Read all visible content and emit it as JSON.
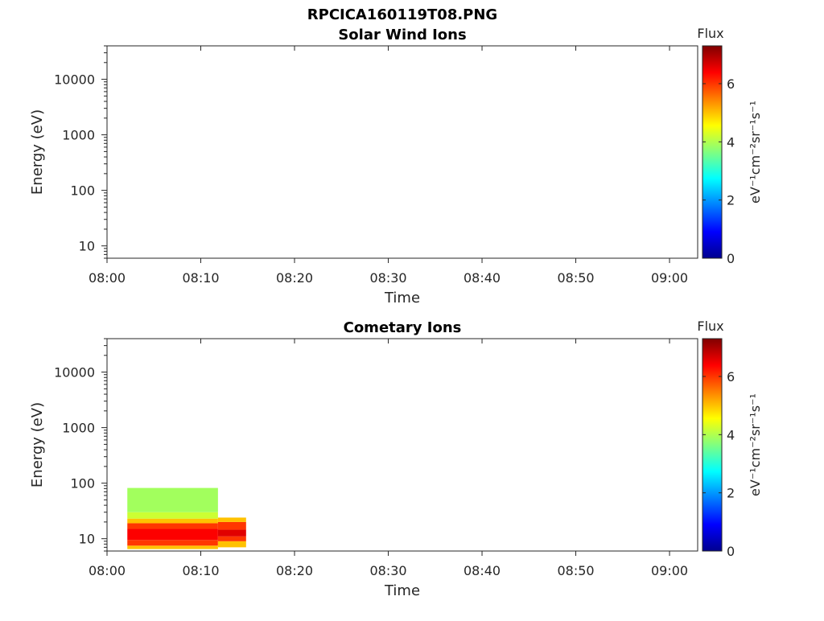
{
  "figure": {
    "filename": "RPCICA160119T08.PNG"
  },
  "chart_data": [
    {
      "type": "heatmap",
      "title": "Solar Wind Ions",
      "xlabel": "Time",
      "ylabel": "Energy (eV)",
      "x_ticks": [
        "08:00",
        "08:10",
        "08:20",
        "08:30",
        "08:40",
        "08:50",
        "09:00"
      ],
      "x_range": [
        "08:00",
        "09:03"
      ],
      "y_scale": "log",
      "y_range": [
        6,
        40000
      ],
      "y_ticks": [
        {
          "value": 10,
          "label": "10"
        },
        {
          "value": 100,
          "label": "100"
        },
        {
          "value": 1000,
          "label": "1000"
        },
        {
          "value": 10000,
          "label": "10000"
        }
      ],
      "colorbar": {
        "title": "Flux",
        "label": "eV⁻¹cm⁻²sr⁻¹s⁻¹",
        "range": [
          0,
          7.3
        ],
        "ticks": [
          "0",
          "2",
          "4",
          "6"
        ],
        "colormap": "jet"
      },
      "cells": []
    },
    {
      "type": "heatmap",
      "title": "Cometary Ions",
      "xlabel": "Time",
      "ylabel": "Energy (eV)",
      "x_ticks": [
        "08:00",
        "08:10",
        "08:20",
        "08:30",
        "08:40",
        "08:50",
        "09:00"
      ],
      "x_range": [
        "08:00",
        "09:03"
      ],
      "y_scale": "log",
      "y_range": [
        6,
        40000
      ],
      "y_ticks": [
        {
          "value": 10,
          "label": "10"
        },
        {
          "value": 100,
          "label": "100"
        },
        {
          "value": 1000,
          "label": "1000"
        },
        {
          "value": 10000,
          "label": "10000"
        }
      ],
      "colorbar": {
        "title": "Flux",
        "label": "eV⁻¹cm⁻²sr⁻¹s⁻¹",
        "range": [
          0,
          7.3
        ],
        "ticks": [
          "0",
          "2",
          "4",
          "6"
        ],
        "colormap": "jet"
      },
      "cells": [
        {
          "t0": "08:02:10",
          "t1": "08:11:50",
          "e0": 6.5,
          "e1": 7.5,
          "flux": 5.0
        },
        {
          "t0": "08:02:10",
          "t1": "08:11:50",
          "e0": 7.5,
          "e1": 9.5,
          "flux": 6.0
        },
        {
          "t0": "08:02:10",
          "t1": "08:11:50",
          "e0": 9.5,
          "e1": 15,
          "flux": 6.4
        },
        {
          "t0": "08:02:10",
          "t1": "08:11:50",
          "e0": 15,
          "e1": 19,
          "flux": 6.0
        },
        {
          "t0": "08:02:10",
          "t1": "08:11:50",
          "e0": 19,
          "e1": 23,
          "flux": 5.0
        },
        {
          "t0": "08:02:10",
          "t1": "08:11:50",
          "e0": 23,
          "e1": 30,
          "flux": 4.2
        },
        {
          "t0": "08:02:10",
          "t1": "08:11:50",
          "e0": 30,
          "e1": 82,
          "flux": 3.9
        },
        {
          "t0": "08:11:50",
          "t1": "08:14:50",
          "e0": 7,
          "e1": 9,
          "flux": 5.0
        },
        {
          "t0": "08:11:50",
          "t1": "08:14:50",
          "e0": 9,
          "e1": 11,
          "flux": 6.0
        },
        {
          "t0": "08:11:50",
          "t1": "08:14:50",
          "e0": 11,
          "e1": 14.5,
          "flux": 6.6
        },
        {
          "t0": "08:11:50",
          "t1": "08:14:50",
          "e0": 14.5,
          "e1": 20,
          "flux": 6.0
        },
        {
          "t0": "08:11:50",
          "t1": "08:14:50",
          "e0": 20,
          "e1": 24,
          "flux": 5.0
        }
      ]
    }
  ]
}
